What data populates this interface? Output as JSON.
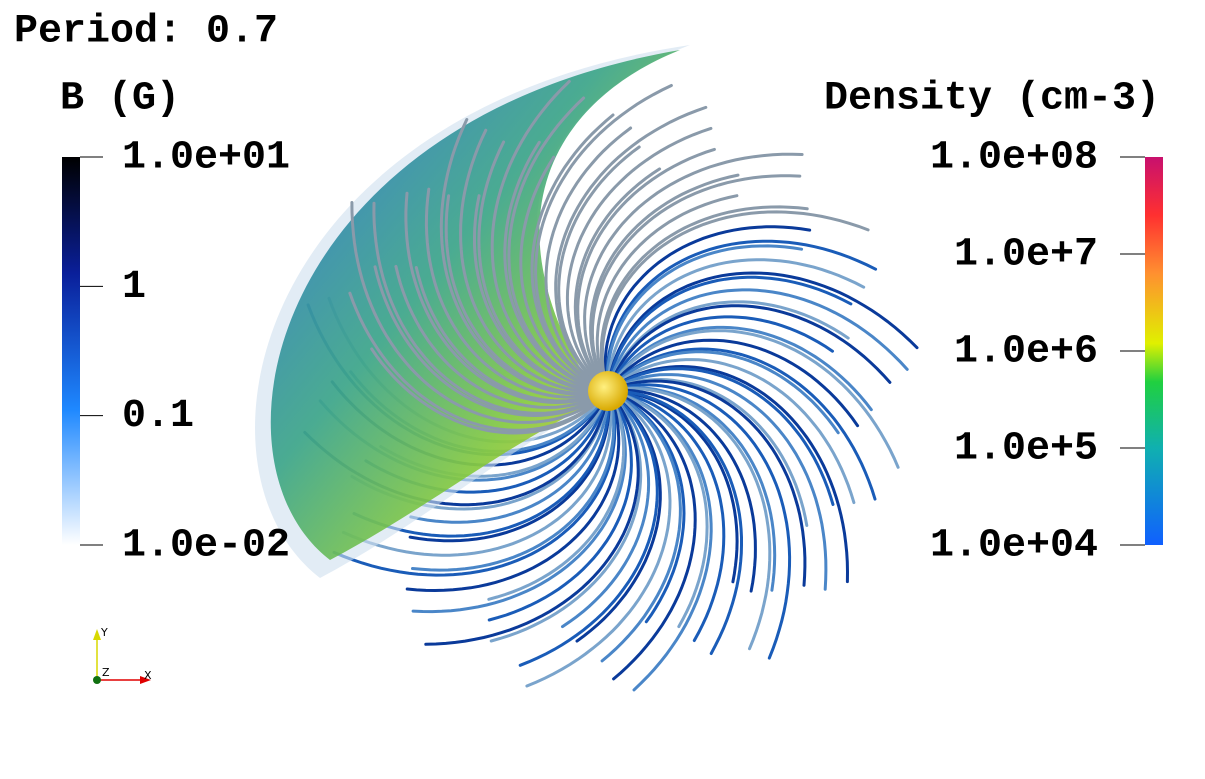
{
  "title": "Period: 0.7",
  "colorbars": {
    "left": {
      "title": "B (G)",
      "ticks": [
        "1.0e+01",
        "1",
        "0.1",
        "1.0e-02"
      ]
    },
    "right": {
      "title": "Density (cm-3)",
      "ticks": [
        "1.0e+08",
        "1.0e+7",
        "1.0e+6",
        "1.0e+5",
        "1.0e+04"
      ]
    }
  },
  "axes": {
    "x": "X",
    "y": "Y",
    "z": "Z"
  }
}
